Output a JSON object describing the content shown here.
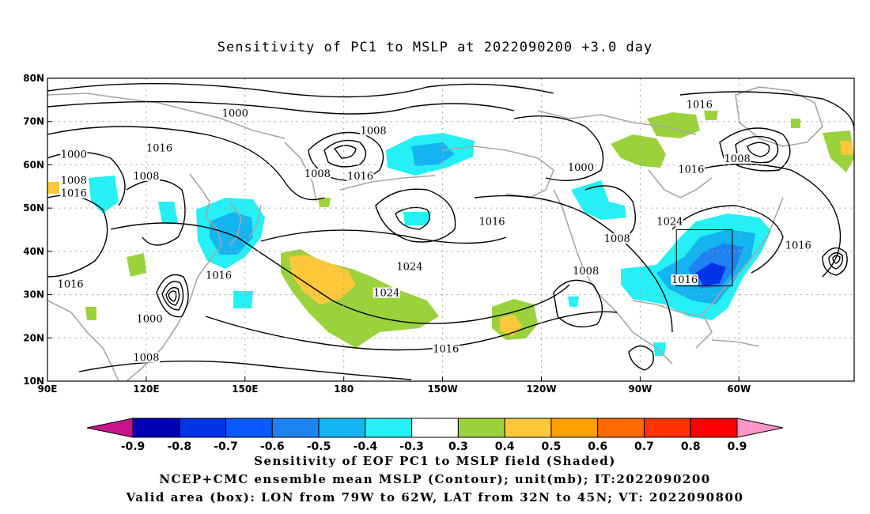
{
  "title": "Sensitivity of PC1 to MSLP at 2022090200 +3.0 day",
  "captions": {
    "line1": "Sensitivity of EOF PC1 to MSLP field (Shaded)",
    "line2": "NCEP+CMC ensemble mean MSLP (Contour); unit(mb); IT:2022090200",
    "line3": "Valid area (box): LON from 79W to 62W, LAT from 32N to 45N; VT: 2022090800"
  },
  "map": {
    "lon_ticks": [
      "90E",
      "120E",
      "150E",
      "180",
      "150W",
      "120W",
      "90W",
      "60W"
    ],
    "lat_ticks": [
      "80N",
      "70N",
      "60N",
      "50N",
      "40N",
      "30N",
      "20N",
      "10N"
    ],
    "isobar_labels": [
      {
        "text": "1000",
        "lon": 147,
        "lat": 71.5
      },
      {
        "text": "1008",
        "lon": 189,
        "lat": 67.5
      },
      {
        "text": "1000",
        "lon": 98,
        "lat": 62
      },
      {
        "text": "1016",
        "lon": 124,
        "lat": 63.5
      },
      {
        "text": "1008",
        "lon": 98,
        "lat": 56
      },
      {
        "text": "1016",
        "lon": 98,
        "lat": 53
      },
      {
        "text": "1008",
        "lon": 120,
        "lat": 57
      },
      {
        "text": "1008",
        "lon": 172,
        "lat": 57.5
      },
      {
        "text": "1016",
        "lon": 185,
        "lat": 57
      },
      {
        "text": "1000",
        "lon": 252,
        "lat": 59
      },
      {
        "text": "1016",
        "lon": 288,
        "lat": 73.5
      },
      {
        "text": "1016",
        "lon": 285.5,
        "lat": 58.5
      },
      {
        "text": "1008",
        "lon": 299.5,
        "lat": 61
      },
      {
        "text": "1024",
        "lon": 279,
        "lat": 46.5
      },
      {
        "text": "1016",
        "lon": 225,
        "lat": 46.5
      },
      {
        "text": "1008",
        "lon": 263,
        "lat": 42.5
      },
      {
        "text": "1024",
        "lon": 200,
        "lat": 36
      },
      {
        "text": "1024",
        "lon": 193,
        "lat": 30
      },
      {
        "text": "1008",
        "lon": 253.5,
        "lat": 35
      },
      {
        "text": "1016",
        "lon": 142,
        "lat": 34
      },
      {
        "text": "1016",
        "lon": 97,
        "lat": 32
      },
      {
        "text": "1000",
        "lon": 121,
        "lat": 24
      },
      {
        "text": "1008",
        "lon": 120,
        "lat": 15
      },
      {
        "text": "1016",
        "lon": 211,
        "lat": 17
      },
      {
        "text": "1016",
        "lon": 283.5,
        "lat": 33
      },
      {
        "text": "1016",
        "lon": 318,
        "lat": 41
      }
    ],
    "valid_box": {
      "lon_min": 281,
      "lon_max": 298,
      "lat_min": 32,
      "lat_max": 45
    },
    "colors": {
      "coast": "#a6a6a6",
      "contour": "#000000",
      "grid": "#a6a6a6"
    }
  },
  "colorbar": {
    "labels": [
      "-0.9",
      "-0.8",
      "-0.7",
      "-0.6",
      "-0.5",
      "-0.4",
      "-0.3",
      "0.3",
      "0.4",
      "0.5",
      "0.6",
      "0.7",
      "0.8",
      "0.9"
    ],
    "colors": [
      "#0000b4",
      "#0032e6",
      "#0a5aff",
      "#1e82f0",
      "#14b4f0",
      "#24f0f5",
      "#ffffff",
      "#9bd23c",
      "#ffc83c",
      "#ffa000",
      "#ff6a00",
      "#ff3200",
      "#ff0000"
    ],
    "low_arrow": "#c8148c",
    "high_arrow": "#ff96c8"
  }
}
